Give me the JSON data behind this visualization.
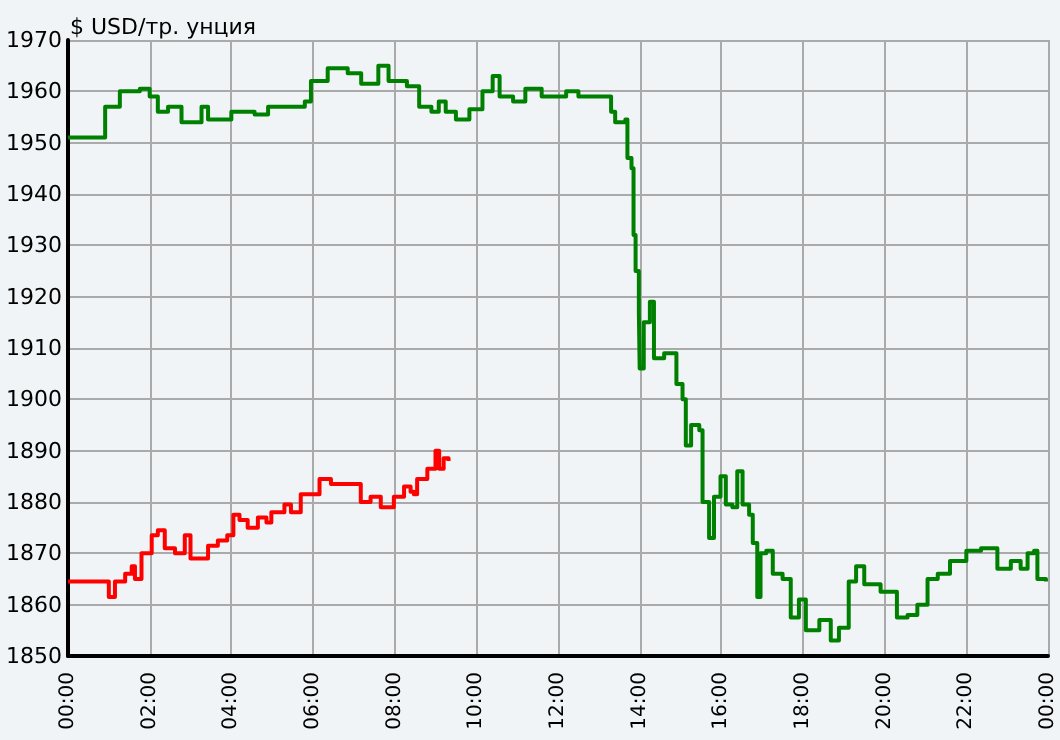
{
  "chart_data": {
    "type": "step",
    "ylabel": "$ USD/тр. унция",
    "xlim": [
      0,
      24
    ],
    "ylim": [
      1850,
      1970
    ],
    "xticks": [
      {
        "value": 0,
        "label": "00:00"
      },
      {
        "value": 2,
        "label": "02:00"
      },
      {
        "value": 4,
        "label": "04:00"
      },
      {
        "value": 6,
        "label": "06:00"
      },
      {
        "value": 8,
        "label": "08:00"
      },
      {
        "value": 10,
        "label": "10:00"
      },
      {
        "value": 12,
        "label": "12:00"
      },
      {
        "value": 14,
        "label": "14:00"
      },
      {
        "value": 16,
        "label": "16:00"
      },
      {
        "value": 18,
        "label": "18:00"
      },
      {
        "value": 20,
        "label": "20:00"
      },
      {
        "value": 22,
        "label": "22:00"
      },
      {
        "value": 24,
        "label": "00:00"
      }
    ],
    "yticks": [
      1850,
      1860,
      1870,
      1880,
      1890,
      1900,
      1910,
      1920,
      1930,
      1940,
      1950,
      1960,
      1970
    ],
    "grid": true,
    "marker": "none",
    "line_style": "solid",
    "series": [
      {
        "color": "#008000",
        "x": [
          0,
          0.91,
          1.27,
          1.76,
          2.0,
          2.2,
          2.45,
          2.78,
          3.27,
          3.43,
          4.0,
          4.57,
          4.9,
          5.5,
          5.8,
          5.95,
          6.36,
          6.85,
          7.18,
          7.6,
          7.85,
          8.3,
          8.6,
          8.9,
          9.08,
          9.25,
          9.5,
          9.83,
          10.15,
          10.4,
          10.57,
          10.9,
          11.2,
          11.6,
          12.05,
          12.2,
          12.5,
          12.95,
          13.3,
          13.4,
          13.65,
          13.7,
          13.8,
          13.85,
          13.9,
          13.98,
          14.0,
          14.1,
          14.25,
          14.35,
          14.6,
          14.75,
          14.9,
          15.05,
          15.13,
          15.26,
          15.46,
          15.54,
          15.7,
          15.82,
          15.98,
          16.11,
          16.27,
          16.39,
          16.52,
          16.68,
          16.77,
          16.88,
          16.96,
          17.1,
          17.26,
          17.5,
          17.7,
          17.9,
          18.07,
          18.4,
          18.68,
          18.88,
          19.12,
          19.3,
          19.5,
          19.9,
          20.3,
          20.56,
          20.8,
          21.05,
          21.3,
          21.6,
          21.8,
          22.0,
          22.36,
          22.76,
          23.09,
          23.33,
          23.5,
          23.66,
          23.74,
          23.95
        ],
        "values": [
          1951,
          1957,
          1960,
          1960.5,
          1959,
          1956,
          1957,
          1954,
          1957,
          1954.5,
          1956,
          1955.5,
          1957,
          1957,
          1958,
          1962,
          1964.5,
          1963.5,
          1961.5,
          1965,
          1962,
          1961,
          1957,
          1956,
          1958,
          1956,
          1954.5,
          1956.5,
          1960,
          1963,
          1959,
          1958,
          1960.5,
          1959,
          1959,
          1960,
          1959,
          1959,
          1956,
          1954,
          1954.5,
          1947,
          1945,
          1932,
          1925,
          1917,
          1906,
          1915,
          1919,
          1908,
          1909,
          1909,
          1903,
          1900,
          1891,
          1895,
          1894,
          1880,
          1873,
          1881,
          1885,
          1879.5,
          1879,
          1886,
          1879.5,
          1877.5,
          1872,
          1861.5,
          1870,
          1870.5,
          1866,
          1865,
          1857.5,
          1861,
          1855,
          1857,
          1853,
          1855.5,
          1864.5,
          1867.5,
          1864,
          1862.5,
          1857.5,
          1858,
          1860,
          1865,
          1866,
          1868.5,
          1868.5,
          1870.5,
          1871,
          1867,
          1868.5,
          1867,
          1870,
          1870.5,
          1865,
          1864.5
        ]
      },
      {
        "color": "#ff0000",
        "x": [
          0,
          0.94,
          1.0,
          1.15,
          1.4,
          1.56,
          1.64,
          1.8,
          2.05,
          2.2,
          2.37,
          2.62,
          2.86,
          3.0,
          3.27,
          3.43,
          3.67,
          3.9,
          4.05,
          4.2,
          4.4,
          4.65,
          4.86,
          4.98,
          5.3,
          5.46,
          5.7,
          5.95,
          6.16,
          6.44,
          6.93,
          7.17,
          7.41,
          7.66,
          7.98,
          8.23,
          8.39,
          8.47,
          8.55,
          8.8,
          9.0,
          9.09,
          9.2,
          9.32
        ],
        "values": [
          1864.5,
          1864.5,
          1861.5,
          1864.5,
          1866,
          1867.5,
          1865,
          1870,
          1873.5,
          1874.5,
          1871,
          1870,
          1873.5,
          1869,
          1869,
          1871.5,
          1872.5,
          1873.5,
          1877.5,
          1876.5,
          1875,
          1877,
          1876,
          1878,
          1879.5,
          1878,
          1881.5,
          1881.5,
          1884.5,
          1883.5,
          1883.5,
          1880,
          1881,
          1879,
          1881,
          1883,
          1882,
          1881.5,
          1884.5,
          1886.5,
          1890,
          1886.5,
          1888.5,
          1888
        ]
      }
    ]
  }
}
